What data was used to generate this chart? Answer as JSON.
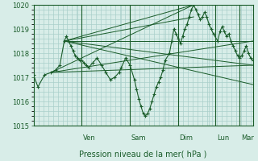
{
  "bg_color": "#d8ede8",
  "grid_color": "#aacfca",
  "line_color": "#1a5c2a",
  "yticks": [
    1015,
    1016,
    1017,
    1018,
    1019,
    1020
  ],
  "xlabel": "Pression niveau de la mer( hPa )",
  "day_labels": [
    "Ven",
    "Sam",
    "Dim",
    "Lun",
    "Mar"
  ],
  "day_positions": [
    0.22,
    0.44,
    0.66,
    0.83,
    0.94
  ],
  "main_series": [
    [
      0.0,
      1017.1
    ],
    [
      0.02,
      1016.6
    ],
    [
      0.05,
      1017.1
    ],
    [
      0.08,
      1017.2
    ],
    [
      0.1,
      1017.3
    ],
    [
      0.12,
      1017.5
    ],
    [
      0.14,
      1018.5
    ],
    [
      0.15,
      1018.7
    ],
    [
      0.16,
      1018.5
    ],
    [
      0.17,
      1018.3
    ],
    [
      0.18,
      1018.1
    ],
    [
      0.19,
      1017.9
    ],
    [
      0.2,
      1017.8
    ],
    [
      0.21,
      1017.7
    ],
    [
      0.22,
      1017.7
    ],
    [
      0.23,
      1017.6
    ],
    [
      0.24,
      1017.5
    ],
    [
      0.25,
      1017.4
    ],
    [
      0.27,
      1017.6
    ],
    [
      0.29,
      1017.8
    ],
    [
      0.31,
      1017.5
    ],
    [
      0.33,
      1017.2
    ],
    [
      0.35,
      1016.9
    ],
    [
      0.37,
      1017.0
    ],
    [
      0.39,
      1017.2
    ],
    [
      0.4,
      1017.4
    ],
    [
      0.42,
      1017.8
    ],
    [
      0.44,
      1017.5
    ],
    [
      0.46,
      1016.9
    ],
    [
      0.47,
      1016.5
    ],
    [
      0.48,
      1016.1
    ],
    [
      0.49,
      1015.8
    ],
    [
      0.5,
      1015.5
    ],
    [
      0.51,
      1015.4
    ],
    [
      0.52,
      1015.5
    ],
    [
      0.53,
      1015.7
    ],
    [
      0.54,
      1016.0
    ],
    [
      0.55,
      1016.3
    ],
    [
      0.56,
      1016.6
    ],
    [
      0.57,
      1016.8
    ],
    [
      0.58,
      1017.0
    ],
    [
      0.59,
      1017.3
    ],
    [
      0.6,
      1017.7
    ],
    [
      0.62,
      1018.0
    ],
    [
      0.63,
      1018.5
    ],
    [
      0.64,
      1019.0
    ],
    [
      0.65,
      1018.8
    ],
    [
      0.66,
      1018.6
    ],
    [
      0.67,
      1018.4
    ],
    [
      0.68,
      1018.7
    ],
    [
      0.69,
      1019.0
    ],
    [
      0.7,
      1019.2
    ],
    [
      0.71,
      1019.5
    ],
    [
      0.72,
      1019.8
    ],
    [
      0.73,
      1020.0
    ],
    [
      0.74,
      1019.8
    ],
    [
      0.75,
      1019.6
    ],
    [
      0.76,
      1019.4
    ],
    [
      0.77,
      1019.5
    ],
    [
      0.78,
      1019.7
    ],
    [
      0.79,
      1019.5
    ],
    [
      0.8,
      1019.2
    ],
    [
      0.81,
      1019.0
    ],
    [
      0.82,
      1018.8
    ],
    [
      0.84,
      1018.5
    ],
    [
      0.85,
      1018.9
    ],
    [
      0.86,
      1019.1
    ],
    [
      0.87,
      1018.9
    ],
    [
      0.88,
      1018.7
    ],
    [
      0.89,
      1018.8
    ],
    [
      0.9,
      1018.5
    ],
    [
      0.91,
      1018.3
    ],
    [
      0.92,
      1018.1
    ],
    [
      0.93,
      1017.9
    ],
    [
      0.94,
      1017.8
    ],
    [
      0.95,
      1017.9
    ],
    [
      0.96,
      1018.1
    ],
    [
      0.97,
      1018.3
    ],
    [
      0.98,
      1018.0
    ],
    [
      0.99,
      1017.8
    ],
    [
      1.0,
      1017.7
    ]
  ],
  "fan_lines": [
    [
      [
        0.14,
        1018.5
      ],
      [
        0.73,
        1020.0
      ]
    ],
    [
      [
        0.14,
        1018.5
      ],
      [
        0.73,
        1019.5
      ]
    ],
    [
      [
        0.14,
        1018.5
      ],
      [
        1.0,
        1018.5
      ]
    ],
    [
      [
        0.14,
        1018.5
      ],
      [
        1.0,
        1017.5
      ]
    ],
    [
      [
        0.14,
        1018.5
      ],
      [
        1.0,
        1016.7
      ]
    ],
    [
      [
        0.08,
        1017.2
      ],
      [
        0.73,
        1020.0
      ]
    ],
    [
      [
        0.08,
        1017.2
      ],
      [
        1.0,
        1018.5
      ]
    ],
    [
      [
        0.08,
        1017.2
      ],
      [
        1.0,
        1017.5
      ]
    ]
  ]
}
